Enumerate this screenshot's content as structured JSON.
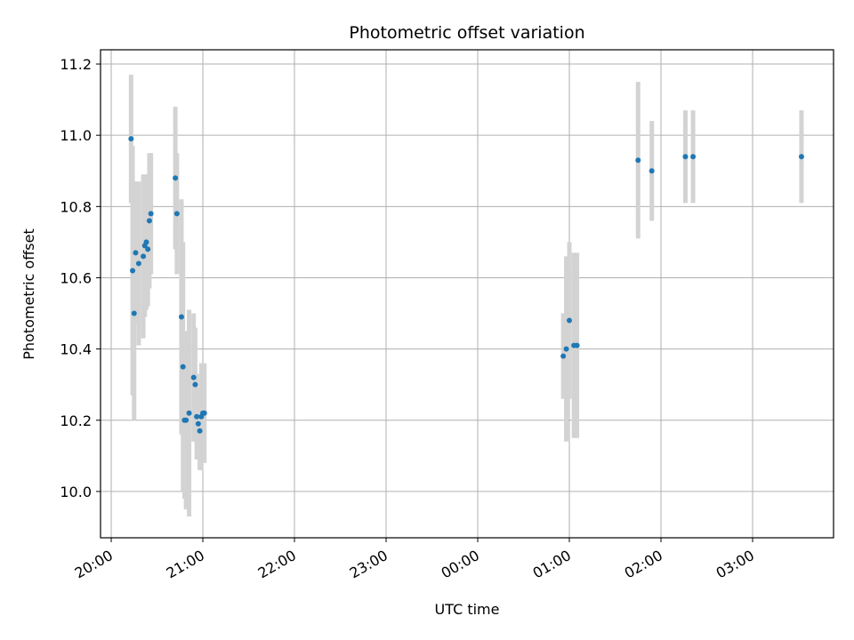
{
  "chart_data": {
    "type": "scatter",
    "title": "Photometric offset variation",
    "xlabel": "UTC time",
    "ylabel": "Photometric offset",
    "x_axis_type": "time",
    "x_start_date": "2000-01-01",
    "xlim": [
      "2000-01-01T19:53:00",
      "2000-01-02T03:53:00"
    ],
    "ylim": [
      9.87,
      11.24
    ],
    "x_ticks": [
      "20:00",
      "21:00",
      "22:00",
      "23:00",
      "00:00",
      "01:00",
      "02:00",
      "03:00"
    ],
    "y_ticks": [
      10.0,
      10.2,
      10.4,
      10.6,
      10.8,
      11.0,
      11.2
    ],
    "grid": true,
    "errorbar_color": "#d3d3d3",
    "marker_color": "#1f77b4",
    "series": [
      {
        "points": [
          {
            "t": "20:13",
            "y": 10.99,
            "err": 0.18
          },
          {
            "t": "20:14",
            "y": 10.62,
            "err": 0.35
          },
          {
            "t": "20:15",
            "y": 10.5,
            "err": 0.3
          },
          {
            "t": "20:16",
            "y": 10.67,
            "err": 0.2
          },
          {
            "t": "20:18",
            "y": 10.64,
            "err": 0.23
          },
          {
            "t": "20:21",
            "y": 10.66,
            "err": 0.23
          },
          {
            "t": "20:22",
            "y": 10.69,
            "err": 0.2
          },
          {
            "t": "20:23",
            "y": 10.7,
            "err": 0.19
          },
          {
            "t": "20:24",
            "y": 10.68,
            "err": 0.16
          },
          {
            "t": "20:25",
            "y": 10.76,
            "err": 0.19
          },
          {
            "t": "20:26",
            "y": 10.78,
            "err": 0.17
          },
          {
            "t": "20:42",
            "y": 10.88,
            "err": 0.2
          },
          {
            "t": "20:43",
            "y": 10.78,
            "err": 0.17
          },
          {
            "t": "20:46",
            "y": 10.49,
            "err": 0.33
          },
          {
            "t": "20:47",
            "y": 10.35,
            "err": 0.35
          },
          {
            "t": "20:48",
            "y": 10.2,
            "err": 0.22
          },
          {
            "t": "20:49",
            "y": 10.2,
            "err": 0.25
          },
          {
            "t": "20:51",
            "y": 10.22,
            "err": 0.29
          },
          {
            "t": "20:54",
            "y": 10.32,
            "err": 0.18
          },
          {
            "t": "20:55",
            "y": 10.3,
            "err": 0.16
          },
          {
            "t": "20:56",
            "y": 10.21,
            "err": 0.12
          },
          {
            "t": "20:57",
            "y": 10.19,
            "err": 0.1
          },
          {
            "t": "20:58",
            "y": 10.17,
            "err": 0.11
          },
          {
            "t": "20:59",
            "y": 10.21,
            "err": 0.15
          },
          {
            "t": "21:00",
            "y": 10.22,
            "err": 0.12
          },
          {
            "t": "21:01",
            "y": 10.22,
            "err": 0.14
          },
          {
            "t": "00:56",
            "y": 10.38,
            "err": 0.12
          },
          {
            "t": "00:58",
            "y": 10.4,
            "err": 0.26
          },
          {
            "t": "01:00",
            "y": 10.48,
            "err": 0.22
          },
          {
            "t": "01:03",
            "y": 10.41,
            "err": 0.26
          },
          {
            "t": "01:05",
            "y": 10.41,
            "err": 0.26
          },
          {
            "t": "01:45",
            "y": 10.93,
            "err": 0.22
          },
          {
            "t": "01:54",
            "y": 10.9,
            "err": 0.14
          },
          {
            "t": "02:16",
            "y": 10.94,
            "err": 0.13
          },
          {
            "t": "02:21",
            "y": 10.94,
            "err": 0.13
          },
          {
            "t": "03:32",
            "y": 10.94,
            "err": 0.13
          }
        ]
      }
    ]
  }
}
